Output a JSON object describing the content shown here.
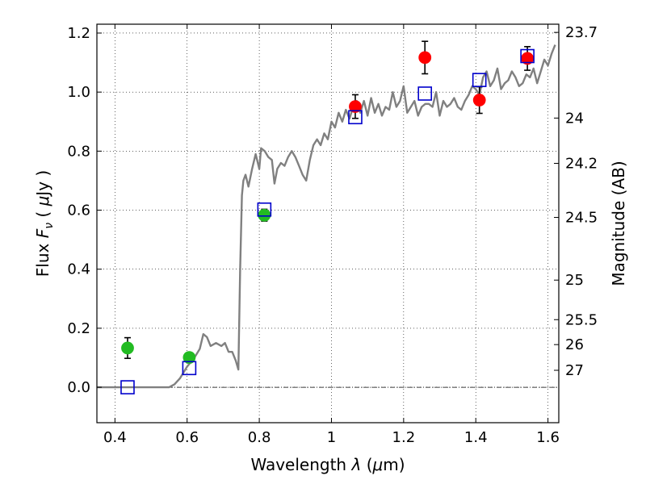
{
  "chart_data": {
    "type": "scatter",
    "xlabel_text": "Wavelength",
    "xlabel_symbol": "λ",
    "xlabel_unit_open": "(",
    "xlabel_unit_mu": "μ",
    "xlabel_unit_rest": "m)",
    "ylabel_text": "Flux",
    "ylabel_symbol": "F",
    "ylabel_sub": "ν",
    "ylabel_unit_open": "(",
    "ylabel_unit_mu": "μ",
    "ylabel_unit_rest": "Jy )",
    "y2label": "Magnitude (AB)",
    "xlim": [
      0.35,
      1.63
    ],
    "ylim": [
      -0.12,
      1.23
    ],
    "xticks": [
      {
        "value": 0.4,
        "label": "0.4"
      },
      {
        "value": 0.6,
        "label": "0.6"
      },
      {
        "value": 0.8,
        "label": "0.8"
      },
      {
        "value": 1.0,
        "label": "1"
      },
      {
        "value": 1.2,
        "label": "1.2"
      },
      {
        "value": 1.4,
        "label": "1.4"
      },
      {
        "value": 1.6,
        "label": "1.6"
      }
    ],
    "yticks": [
      {
        "value": 0.0,
        "label": "0.0"
      },
      {
        "value": 0.2,
        "label": "0.2"
      },
      {
        "value": 0.4,
        "label": "0.4"
      },
      {
        "value": 0.6,
        "label": "0.6"
      },
      {
        "value": 0.8,
        "label": "0.8"
      },
      {
        "value": 1.0,
        "label": "1.0"
      },
      {
        "value": 1.2,
        "label": "1.2"
      }
    ],
    "mag_ticks": [
      {
        "mag": 23.7,
        "label": "23.7"
      },
      {
        "mag": 24.0,
        "label": "24"
      },
      {
        "mag": 24.2,
        "label": "24.2"
      },
      {
        "mag": 24.5,
        "label": "24.5"
      },
      {
        "mag": 25.0,
        "label": "25"
      },
      {
        "mag": 25.5,
        "label": "25.5"
      },
      {
        "mag": 26.0,
        "label": "26"
      },
      {
        "mag": 27.0,
        "label": "27"
      }
    ],
    "grid": true,
    "zero_line": true,
    "series": [
      {
        "kind": "line",
        "color": "#808080",
        "x": [
          0.35,
          0.55,
          0.565,
          0.58,
          0.6,
          0.62,
          0.635,
          0.645,
          0.655,
          0.665,
          0.68,
          0.695,
          0.705,
          0.715,
          0.725,
          0.735,
          0.742,
          0.747,
          0.752,
          0.756,
          0.762,
          0.77,
          0.78,
          0.79,
          0.8,
          0.805,
          0.815,
          0.825,
          0.835,
          0.842,
          0.85,
          0.86,
          0.87,
          0.88,
          0.89,
          0.9,
          0.91,
          0.92,
          0.93,
          0.94,
          0.95,
          0.96,
          0.97,
          0.98,
          0.99,
          1.0,
          1.01,
          1.02,
          1.03,
          1.04,
          1.05,
          1.06,
          1.07,
          1.08,
          1.09,
          1.1,
          1.11,
          1.12,
          1.13,
          1.14,
          1.15,
          1.16,
          1.17,
          1.18,
          1.19,
          1.2,
          1.21,
          1.22,
          1.23,
          1.24,
          1.25,
          1.26,
          1.27,
          1.28,
          1.29,
          1.3,
          1.31,
          1.32,
          1.33,
          1.34,
          1.35,
          1.36,
          1.37,
          1.38,
          1.39,
          1.4,
          1.41,
          1.42,
          1.43,
          1.44,
          1.45,
          1.46,
          1.47,
          1.48,
          1.49,
          1.5,
          1.51,
          1.52,
          1.53,
          1.54,
          1.55,
          1.56,
          1.57,
          1.58,
          1.59,
          1.6,
          1.61,
          1.62
        ],
        "y": [
          0.0,
          0.0,
          0.01,
          0.03,
          0.07,
          0.1,
          0.13,
          0.18,
          0.17,
          0.14,
          0.15,
          0.14,
          0.15,
          0.12,
          0.12,
          0.09,
          0.06,
          0.4,
          0.65,
          0.7,
          0.72,
          0.68,
          0.74,
          0.79,
          0.74,
          0.81,
          0.8,
          0.78,
          0.77,
          0.69,
          0.74,
          0.76,
          0.75,
          0.78,
          0.8,
          0.78,
          0.75,
          0.72,
          0.7,
          0.77,
          0.82,
          0.84,
          0.82,
          0.86,
          0.84,
          0.9,
          0.88,
          0.93,
          0.9,
          0.94,
          0.91,
          0.95,
          0.97,
          0.93,
          0.97,
          0.92,
          0.98,
          0.93,
          0.96,
          0.92,
          0.95,
          0.94,
          1.0,
          0.95,
          0.97,
          1.02,
          0.93,
          0.95,
          0.97,
          0.92,
          0.95,
          0.96,
          0.96,
          0.95,
          1.0,
          0.92,
          0.97,
          0.95,
          0.96,
          0.98,
          0.95,
          0.94,
          0.97,
          0.99,
          1.02,
          1.01,
          0.99,
          1.05,
          1.07,
          1.02,
          1.04,
          1.08,
          1.01,
          1.03,
          1.04,
          1.07,
          1.05,
          1.02,
          1.03,
          1.06,
          1.05,
          1.08,
          1.03,
          1.07,
          1.11,
          1.09,
          1.13,
          1.16
        ]
      },
      {
        "kind": "points",
        "marker": "circle",
        "color": "#22bb22",
        "points": [
          {
            "x": 0.435,
            "y": 0.133,
            "err": 0.035
          },
          {
            "x": 0.606,
            "y": 0.101,
            "err": 0.015
          },
          {
            "x": 0.814,
            "y": 0.583,
            "err": 0.02
          }
        ]
      },
      {
        "kind": "points",
        "marker": "circle",
        "color": "#ff0000",
        "points": [
          {
            "x": 1.066,
            "y": 0.951,
            "err": 0.04
          },
          {
            "x": 1.259,
            "y": 1.117,
            "err": 0.055
          },
          {
            "x": 1.41,
            "y": 0.973,
            "err": 0.045
          },
          {
            "x": 1.543,
            "y": 1.114,
            "err": 0.04
          }
        ]
      },
      {
        "kind": "points",
        "marker": "open-square",
        "color": "#0000cc",
        "points": [
          {
            "x": 0.435,
            "y": 0.0
          },
          {
            "x": 0.606,
            "y": 0.065
          },
          {
            "x": 0.814,
            "y": 0.602
          },
          {
            "x": 1.066,
            "y": 0.915
          },
          {
            "x": 1.259,
            "y": 0.995
          },
          {
            "x": 1.41,
            "y": 1.041
          },
          {
            "x": 1.543,
            "y": 1.122
          }
        ]
      }
    ]
  }
}
